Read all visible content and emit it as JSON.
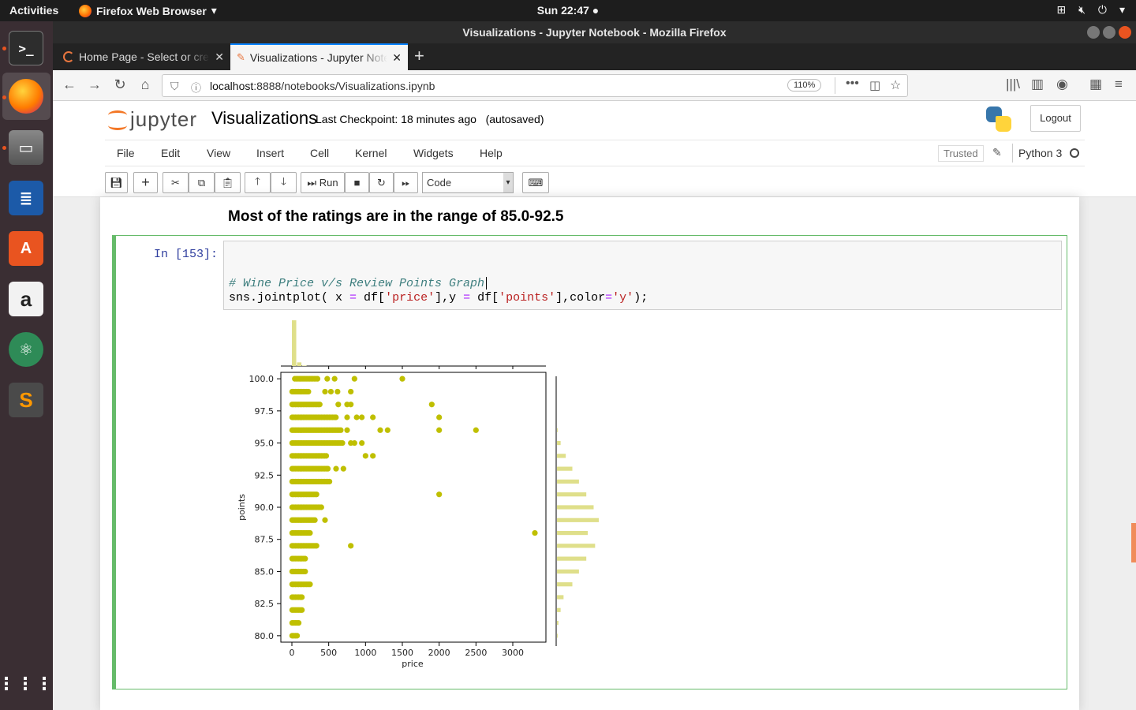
{
  "topbar": {
    "activities": "Activities",
    "app_name": "Firefox Web Browser",
    "clock": "Sun 22:47"
  },
  "window": {
    "title": "Visualizations - Jupyter Notebook - Mozilla Firefox"
  },
  "tabs": [
    {
      "label": "Home Page - Select or create a notebook",
      "active": false
    },
    {
      "label": "Visualizations - Jupyter Notebook",
      "active": true
    }
  ],
  "navbar": {
    "url_host": "localhost",
    "url_rest": ":8888/notebooks/Visualizations.ipynb",
    "zoom": "110%"
  },
  "jupyter": {
    "logo_text": "jupyter",
    "notebook_name": "Visualizations",
    "checkpoint": "Last Checkpoint: 18 minutes ago",
    "autosaved": "(autosaved)",
    "logout": "Logout",
    "menu": [
      "File",
      "Edit",
      "View",
      "Insert",
      "Cell",
      "Kernel",
      "Widgets",
      "Help"
    ],
    "trusted": "Trusted",
    "kernel": "Python 3",
    "toolbar": {
      "run_label": "Run",
      "cell_type": "Code"
    }
  },
  "notebook": {
    "markdown_text": "Most of the ratings are in the range of 85.0-92.5",
    "cell": {
      "prompt": "In [153]:",
      "comment": "# Wine Price v/s Review Points Graph",
      "code_prefix": "sns.jointplot( x ",
      "code_eq1": "=",
      "code_mid1": " df[",
      "code_str1": "'price'",
      "code_mid2": "],y ",
      "code_eq2": "=",
      "code_mid3": " df[",
      "code_str2": "'points'",
      "code_mid4": "],color",
      "code_eq3": "=",
      "code_str3": "'y'",
      "code_end": ");"
    }
  },
  "chart_data": {
    "type": "scatter",
    "title": "",
    "xlabel": "price",
    "ylabel": "points",
    "xlim": [
      -150,
      3450
    ],
    "ylim": [
      79.5,
      100.5
    ],
    "xticks": [
      0,
      500,
      1000,
      1500,
      2000,
      2500,
      3000
    ],
    "yticks": [
      80.0,
      82.5,
      85.0,
      87.5,
      90.0,
      92.5,
      95.0,
      97.5,
      100.0
    ],
    "color": "#bfbf00",
    "marginal_color": "#dfdf8a",
    "bands": [
      {
        "points": 80,
        "min_price": 4,
        "max_price": 70
      },
      {
        "points": 81,
        "min_price": 4,
        "max_price": 100
      },
      {
        "points": 82,
        "min_price": 4,
        "max_price": 140
      },
      {
        "points": 83,
        "min_price": 4,
        "max_price": 150
      },
      {
        "points": 84,
        "min_price": 4,
        "max_price": 250
      },
      {
        "points": 85,
        "min_price": 4,
        "max_price": 200
      },
      {
        "points": 86,
        "min_price": 4,
        "max_price": 190
      },
      {
        "points": 87,
        "min_price": 4,
        "max_price": 350
      },
      {
        "points": 88,
        "min_price": 4,
        "max_price": 260
      },
      {
        "points": 89,
        "min_price": 4,
        "max_price": 330
      },
      {
        "points": 90,
        "min_price": 4,
        "max_price": 380
      },
      {
        "points": 91,
        "min_price": 4,
        "max_price": 350
      },
      {
        "points": 92,
        "min_price": 4,
        "max_price": 530
      },
      {
        "points": 93,
        "min_price": 4,
        "max_price": 500
      },
      {
        "points": 94,
        "min_price": 4,
        "max_price": 480
      },
      {
        "points": 95,
        "min_price": 4,
        "max_price": 700
      },
      {
        "points": 96,
        "min_price": 4,
        "max_price": 680
      },
      {
        "points": 97,
        "min_price": 4,
        "max_price": 600
      },
      {
        "points": 98,
        "min_price": 4,
        "max_price": 390
      },
      {
        "points": 99,
        "min_price": 4,
        "max_price": 230
      },
      {
        "points": 100,
        "min_price": 40,
        "max_price": 350
      }
    ],
    "outliers": [
      {
        "x": 450,
        "y": 89
      },
      {
        "x": 400,
        "y": 90
      },
      {
        "x": 800,
        "y": 87
      },
      {
        "x": 3300,
        "y": 88
      },
      {
        "x": 2000,
        "y": 91
      },
      {
        "x": 600,
        "y": 93
      },
      {
        "x": 700,
        "y": 93
      },
      {
        "x": 1000,
        "y": 94
      },
      {
        "x": 1100,
        "y": 94
      },
      {
        "x": 800,
        "y": 95
      },
      {
        "x": 850,
        "y": 95
      },
      {
        "x": 950,
        "y": 95
      },
      {
        "x": 750,
        "y": 96
      },
      {
        "x": 1200,
        "y": 96
      },
      {
        "x": 1300,
        "y": 96
      },
      {
        "x": 2000,
        "y": 96
      },
      {
        "x": 2500,
        "y": 96
      },
      {
        "x": 750,
        "y": 97
      },
      {
        "x": 880,
        "y": 97
      },
      {
        "x": 950,
        "y": 97
      },
      {
        "x": 1100,
        "y": 97
      },
      {
        "x": 2000,
        "y": 97
      },
      {
        "x": 630,
        "y": 98
      },
      {
        "x": 750,
        "y": 98
      },
      {
        "x": 800,
        "y": 98
      },
      {
        "x": 1900,
        "y": 98
      },
      {
        "x": 450,
        "y": 99
      },
      {
        "x": 530,
        "y": 99
      },
      {
        "x": 620,
        "y": 99
      },
      {
        "x": 800,
        "y": 99
      },
      {
        "x": 480,
        "y": 100
      },
      {
        "x": 580,
        "y": 100
      },
      {
        "x": 850,
        "y": 100
      },
      {
        "x": 1500,
        "y": 100
      }
    ],
    "points_marginal": [
      {
        "points": 80,
        "count": 1
      },
      {
        "points": 81,
        "count": 2
      },
      {
        "points": 82,
        "count": 5
      },
      {
        "points": 83,
        "count": 9
      },
      {
        "points": 84,
        "count": 21
      },
      {
        "points": 85,
        "count": 30
      },
      {
        "points": 86,
        "count": 40
      },
      {
        "points": 87,
        "count": 52
      },
      {
        "points": 88,
        "count": 42
      },
      {
        "points": 89,
        "count": 57
      },
      {
        "points": 90,
        "count": 50
      },
      {
        "points": 91,
        "count": 40
      },
      {
        "points": 92,
        "count": 30
      },
      {
        "points": 93,
        "count": 21
      },
      {
        "points": 94,
        "count": 12
      },
      {
        "points": 95,
        "count": 5
      },
      {
        "points": 96,
        "count": 1
      }
    ],
    "price_marginal": [
      {
        "x": 0,
        "count": 100
      },
      {
        "x": 70,
        "count": 8
      },
      {
        "x": 140,
        "count": 1
      }
    ]
  }
}
